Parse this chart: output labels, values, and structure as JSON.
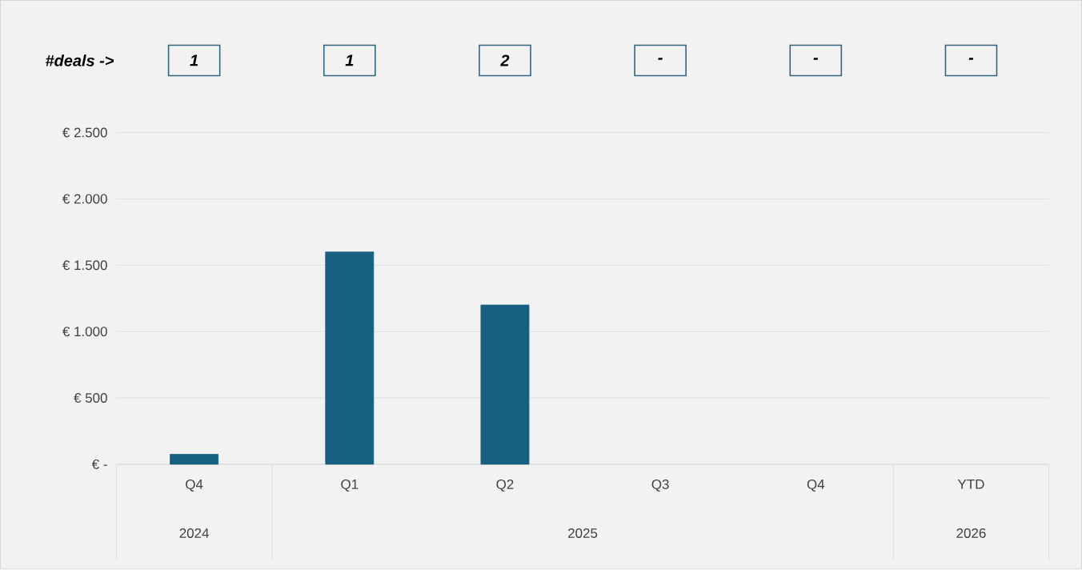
{
  "chart_data": {
    "type": "bar",
    "categories": [
      "Q4",
      "Q1",
      "Q2",
      "Q3",
      "Q4",
      "YTD"
    ],
    "values": [
      75,
      1600,
      1200,
      null,
      null,
      null
    ],
    "color": "#17607f",
    "ylim": [
      0,
      2500
    ],
    "yticks": [
      {
        "value": 0,
        "label": "€ -"
      },
      {
        "value": 500,
        "label": "€ 500"
      },
      {
        "value": 1000,
        "label": "€ 1.000"
      },
      {
        "value": 1500,
        "label": "€ 1.500"
      },
      {
        "value": 2000,
        "label": "€ 2.000"
      },
      {
        "value": 2500,
        "label": "€ 2.500"
      }
    ],
    "grid": "y",
    "annotations": [
      "#deals ->",
      "1",
      "1",
      "2",
      "-",
      "-",
      "-",
      "2024",
      "2025",
      "2026"
    ]
  }
}
